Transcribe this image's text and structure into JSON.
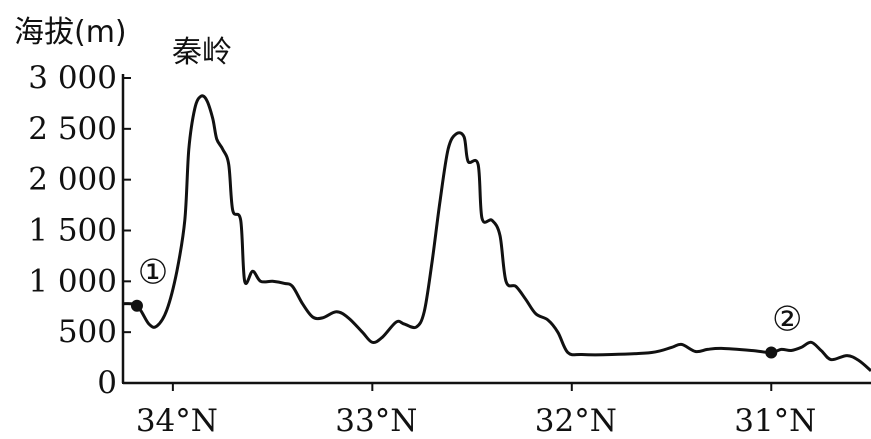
{
  "chart_data": {
    "type": "line",
    "ylabel": "海拔(m)",
    "annotation": "秦岭",
    "y_ticks": [
      {
        "value": 0,
        "label": "0"
      },
      {
        "value": 500,
        "label": "500"
      },
      {
        "value": 1000,
        "label": "1 000"
      },
      {
        "value": 1500,
        "label": "1 500"
      },
      {
        "value": 2000,
        "label": "2 000"
      },
      {
        "value": 2500,
        "label": "2 500"
      },
      {
        "value": 3000,
        "label": "3 000"
      }
    ],
    "x_ticks": [
      {
        "value": 34,
        "label": "34°N"
      },
      {
        "value": 33,
        "label": "33°N"
      },
      {
        "value": 32,
        "label": "32°N"
      },
      {
        "value": 31,
        "label": "31°N"
      }
    ],
    "xlim": [
      34.25,
      30.5
    ],
    "ylim": [
      0,
      3000
    ],
    "series": [
      {
        "color": "#111111",
        "points": [
          [
            34.25,
            780
          ],
          [
            34.18,
            760
          ],
          [
            34.12,
            580
          ],
          [
            34.08,
            560
          ],
          [
            34.03,
            720
          ],
          [
            33.98,
            1100
          ],
          [
            33.94,
            1600
          ],
          [
            33.92,
            2300
          ],
          [
            33.89,
            2700
          ],
          [
            33.86,
            2820
          ],
          [
            33.83,
            2780
          ],
          [
            33.8,
            2600
          ],
          [
            33.78,
            2400
          ],
          [
            33.75,
            2300
          ],
          [
            33.72,
            2150
          ],
          [
            33.7,
            1700
          ],
          [
            33.66,
            1600
          ],
          [
            33.64,
            1000
          ],
          [
            33.6,
            1100
          ],
          [
            33.56,
            1000
          ],
          [
            33.5,
            1000
          ],
          [
            33.44,
            980
          ],
          [
            33.4,
            950
          ],
          [
            33.35,
            780
          ],
          [
            33.3,
            650
          ],
          [
            33.25,
            640
          ],
          [
            33.18,
            700
          ],
          [
            33.12,
            640
          ],
          [
            33.05,
            500
          ],
          [
            33.0,
            400
          ],
          [
            32.95,
            450
          ],
          [
            32.88,
            600
          ],
          [
            32.84,
            580
          ],
          [
            32.78,
            550
          ],
          [
            32.74,
            700
          ],
          [
            32.7,
            1200
          ],
          [
            32.66,
            1800
          ],
          [
            32.62,
            2300
          ],
          [
            32.58,
            2450
          ],
          [
            32.54,
            2420
          ],
          [
            32.52,
            2180
          ],
          [
            32.47,
            2150
          ],
          [
            32.45,
            1620
          ],
          [
            32.4,
            1600
          ],
          [
            32.36,
            1450
          ],
          [
            32.33,
            1000
          ],
          [
            32.28,
            950
          ],
          [
            32.23,
            820
          ],
          [
            32.18,
            680
          ],
          [
            32.12,
            620
          ],
          [
            32.07,
            500
          ],
          [
            32.02,
            300
          ],
          [
            31.95,
            280
          ],
          [
            31.8,
            280
          ],
          [
            31.6,
            300
          ],
          [
            31.5,
            350
          ],
          [
            31.45,
            380
          ],
          [
            31.38,
            310
          ],
          [
            31.32,
            330
          ],
          [
            31.25,
            340
          ],
          [
            31.1,
            320
          ],
          [
            31.0,
            300
          ],
          [
            30.95,
            330
          ],
          [
            30.9,
            320
          ],
          [
            30.85,
            350
          ],
          [
            30.8,
            400
          ],
          [
            30.75,
            320
          ],
          [
            30.7,
            230
          ],
          [
            30.62,
            270
          ],
          [
            30.56,
            220
          ],
          [
            30.5,
            120
          ]
        ]
      }
    ],
    "markers": [
      {
        "label": "①",
        "x": 34.18,
        "y": 760
      },
      {
        "label": "②",
        "x": 31.0,
        "y": 300
      }
    ],
    "grid": false
  }
}
